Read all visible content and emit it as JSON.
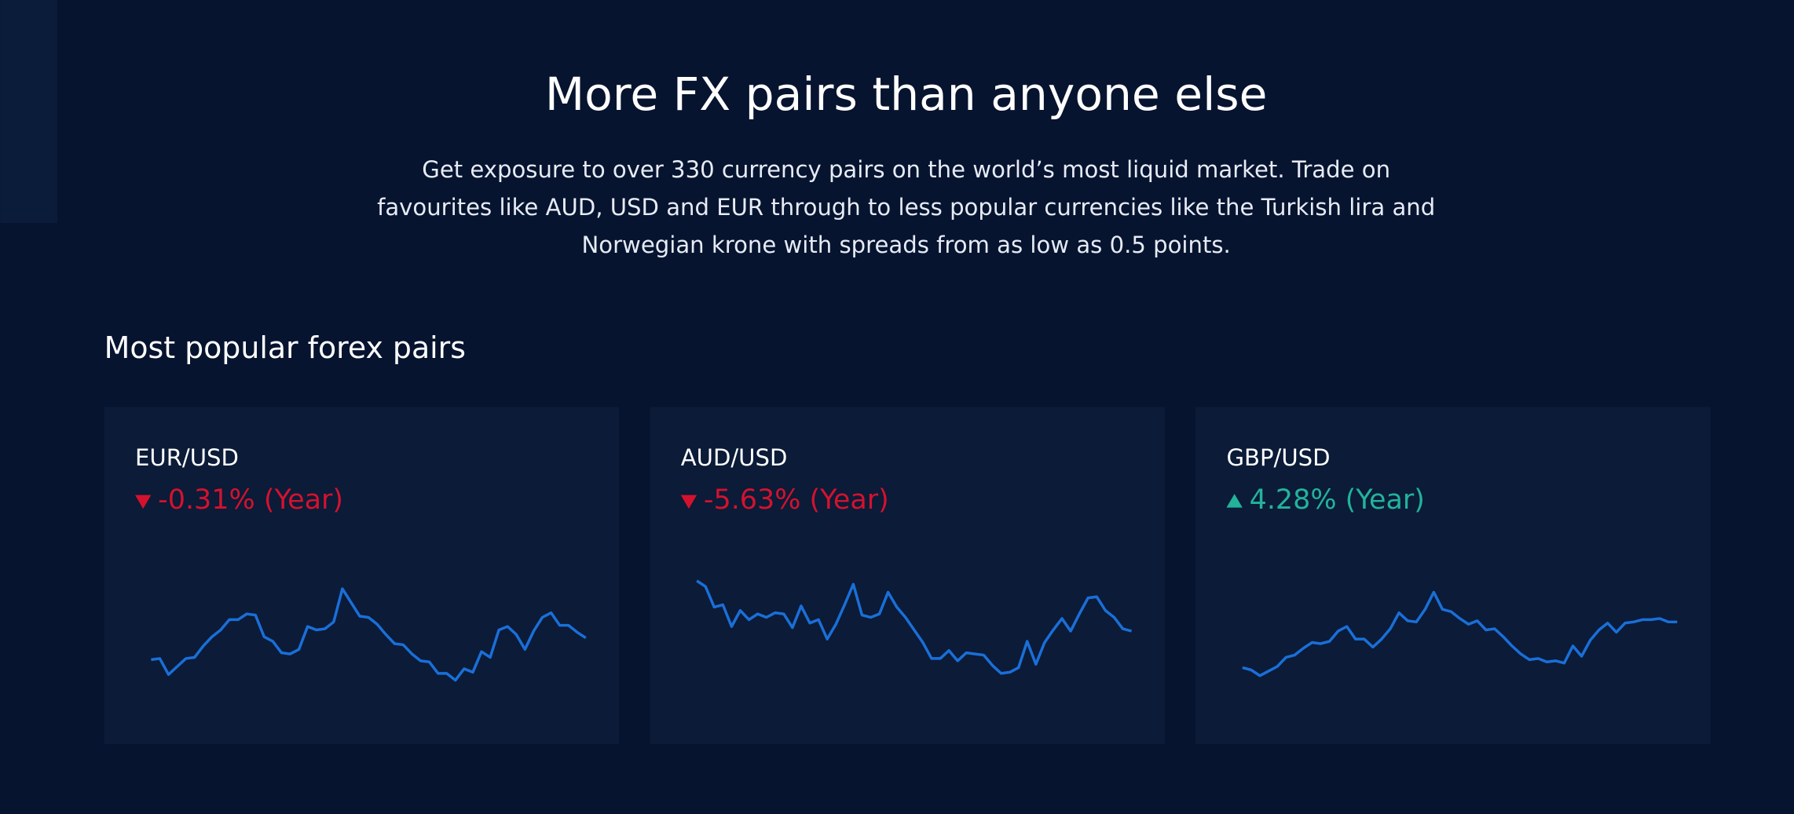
{
  "header": {
    "title": "More FX pairs than anyone else",
    "intro": [
      "Get exposure to over 330 currency pairs on the world’s most liquid market. Trade on",
      "favourites like AUD, USD and EUR through to less popular currencies like the Turkish lira and",
      "Norwegian krone with spreads from as low as 0.5 points."
    ]
  },
  "section": {
    "title": "Most popular forex pairs",
    "cards": [
      {
        "pair": "EUR/USD",
        "change": "-0.31% (Year)",
        "direction": "down",
        "ylim": [
          20,
          120
        ],
        "values": [
          43,
          44,
          30,
          37,
          44,
          45,
          55,
          63,
          69,
          78,
          78,
          83,
          82,
          63,
          59,
          49,
          48,
          52,
          72,
          69,
          70,
          76,
          105,
          93,
          81,
          80,
          74,
          65,
          57,
          56,
          48,
          42,
          41,
          31,
          31,
          25,
          35,
          32,
          50,
          45,
          69,
          72,
          65,
          52,
          68,
          80,
          84,
          73,
          73,
          67,
          62
        ]
      },
      {
        "pair": "AUD/USD",
        "change": "-5.63% (Year)",
        "direction": "down",
        "ylim": [
          20,
          120
        ],
        "values": [
          112,
          107,
          89,
          91,
          72,
          86,
          78,
          83,
          80,
          84,
          83,
          71,
          90,
          75,
          78,
          61,
          74,
          91,
          109,
          82,
          80,
          83,
          102,
          89,
          80,
          69,
          58,
          44,
          44,
          51,
          42,
          49,
          48,
          47,
          38,
          31,
          32,
          36,
          59,
          39,
          58,
          69,
          79,
          68,
          83,
          97,
          98,
          86,
          80,
          70,
          68
        ]
      },
      {
        "pair": "GBP/USD",
        "change": "4.28% (Year)",
        "direction": "up",
        "ylim": [
          20,
          120
        ],
        "values": [
          36,
          34,
          29,
          33,
          37,
          45,
          47,
          53,
          58,
          57,
          59,
          68,
          72,
          61,
          61,
          54,
          61,
          70,
          84,
          77,
          76,
          87,
          102,
          87,
          85,
          79,
          74,
          77,
          69,
          70,
          63,
          55,
          48,
          43,
          44,
          41,
          42,
          40,
          55,
          46,
          60,
          69,
          75,
          67,
          75,
          76,
          78,
          78,
          79,
          76,
          76
        ]
      }
    ]
  },
  "colors": {
    "up": "#23b39a",
    "down": "#d3122e",
    "line": "#1a6fd8"
  }
}
